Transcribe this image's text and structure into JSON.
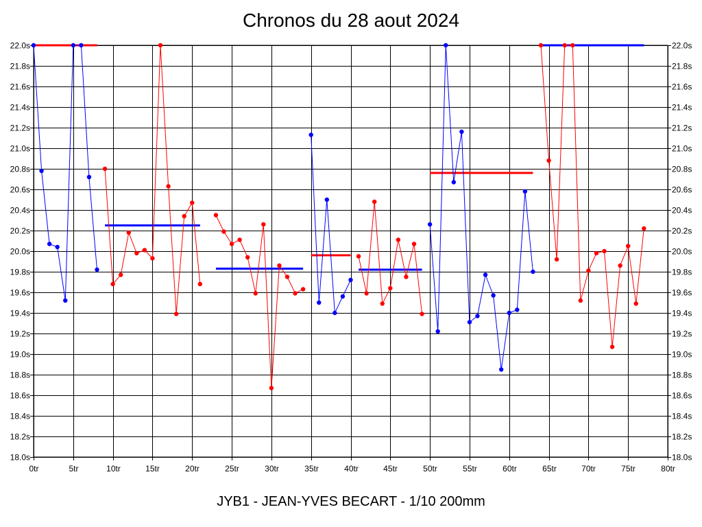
{
  "chart_data": {
    "type": "line",
    "title": "Chronos du 28 aout 2024",
    "subtitle": "JYB1 - JEAN-YVES BECART - 1/10 200mm",
    "xlim": [
      0,
      80
    ],
    "ylim": [
      18.0,
      22.0
    ],
    "grid": true,
    "x_ticks": [
      0,
      5,
      10,
      15,
      20,
      25,
      30,
      35,
      40,
      45,
      50,
      55,
      60,
      65,
      70,
      75,
      80
    ],
    "x_tick_labels": [
      "0tr",
      "5tr",
      "10tr",
      "15tr",
      "20tr",
      "25tr",
      "30tr",
      "35tr",
      "40tr",
      "45tr",
      "50tr",
      "55tr",
      "60tr",
      "65tr",
      "70tr",
      "75tr",
      "80tr"
    ],
    "y_ticks": [
      18.0,
      18.2,
      18.4,
      18.6,
      18.8,
      19.0,
      19.2,
      19.4,
      19.6,
      19.8,
      20.0,
      20.2,
      20.4,
      20.6,
      20.8,
      21.0,
      21.2,
      21.4,
      21.6,
      21.8,
      22.0
    ],
    "y_tick_labels": [
      "18.0s",
      "18.2s",
      "18.4s",
      "18.6s",
      "18.8s",
      "19.0s",
      "19.2s",
      "19.4s",
      "19.6s",
      "19.8s",
      "20.0s",
      "20.2s",
      "20.4s",
      "20.6s",
      "20.8s",
      "21.0s",
      "21.2s",
      "21.4s",
      "21.6s",
      "21.8s",
      "22.0s"
    ],
    "colors": {
      "blue": "#0000ff",
      "red": "#ff0000",
      "grid": "#000000"
    },
    "series": [
      {
        "color": "#0000ff",
        "points": [
          [
            0,
            22.0
          ],
          [
            1,
            20.78
          ],
          [
            2,
            20.07
          ],
          [
            3,
            20.04
          ],
          [
            4,
            19.52
          ],
          [
            5,
            22.0
          ],
          [
            6,
            22.0
          ],
          [
            7,
            20.72
          ],
          [
            8,
            19.82
          ]
        ]
      },
      {
        "color": "#ff0000",
        "points": [
          [
            9,
            20.8
          ],
          [
            10,
            19.68
          ],
          [
            11,
            19.77
          ],
          [
            12,
            20.18
          ],
          [
            13,
            19.98
          ],
          [
            14,
            20.01
          ],
          [
            15,
            19.93
          ],
          [
            16,
            22.0
          ],
          [
            17,
            20.63
          ],
          [
            18,
            19.39
          ],
          [
            19,
            20.34
          ],
          [
            20,
            20.47
          ],
          [
            21,
            19.68
          ]
        ]
      },
      {
        "color": "#ff0000",
        "points": [
          [
            23,
            20.35
          ],
          [
            24,
            20.19
          ],
          [
            25,
            20.07
          ],
          [
            26,
            20.11
          ],
          [
            27,
            19.94
          ],
          [
            28,
            19.59
          ],
          [
            29,
            20.26
          ],
          [
            30,
            18.67
          ],
          [
            31,
            19.86
          ],
          [
            32,
            19.75
          ],
          [
            33,
            19.59
          ],
          [
            34,
            19.63
          ]
        ]
      },
      {
        "color": "#0000ff",
        "points": [
          [
            35,
            21.13
          ],
          [
            36,
            19.5
          ],
          [
            37,
            20.5
          ],
          [
            38,
            19.4
          ],
          [
            39,
            19.56
          ],
          [
            40,
            19.72
          ]
        ]
      },
      {
        "color": "#ff0000",
        "points": [
          [
            41,
            19.95
          ],
          [
            42,
            19.59
          ],
          [
            43,
            20.48
          ],
          [
            44,
            19.49
          ],
          [
            45,
            19.64
          ],
          [
            46,
            20.11
          ],
          [
            47,
            19.75
          ],
          [
            48,
            20.07
          ],
          [
            49,
            19.39
          ]
        ]
      },
      {
        "color": "#0000ff",
        "points": [
          [
            50,
            20.26
          ],
          [
            51,
            19.22
          ],
          [
            52,
            22.0
          ],
          [
            53,
            20.67
          ],
          [
            54,
            21.16
          ],
          [
            55,
            19.31
          ],
          [
            56,
            19.37
          ],
          [
            57,
            19.77
          ],
          [
            58,
            19.57
          ],
          [
            59,
            18.85
          ],
          [
            60,
            19.4
          ],
          [
            61,
            19.43
          ],
          [
            62,
            20.58
          ],
          [
            63,
            19.8
          ]
        ]
      },
      {
        "color": "#ff0000",
        "points": [
          [
            64,
            22.0
          ],
          [
            65,
            20.88
          ],
          [
            66,
            19.92
          ],
          [
            67,
            22.0
          ],
          [
            68,
            22.0
          ],
          [
            69,
            19.52
          ],
          [
            70,
            19.81
          ],
          [
            71,
            19.98
          ],
          [
            72,
            20.0
          ],
          [
            73,
            19.07
          ],
          [
            74,
            19.86
          ],
          [
            75,
            20.05
          ],
          [
            76,
            19.49
          ],
          [
            77,
            20.22
          ]
        ]
      }
    ],
    "averages": [
      {
        "color": "#ff0000",
        "from": 0,
        "to": 8,
        "value": 22.0
      },
      {
        "color": "#0000ff",
        "from": 9,
        "to": 21,
        "value": 20.25
      },
      {
        "color": "#0000ff",
        "from": 23,
        "to": 34,
        "value": 19.83
      },
      {
        "color": "#ff0000",
        "from": 35,
        "to": 40,
        "value": 19.96
      },
      {
        "color": "#0000ff",
        "from": 41,
        "to": 49,
        "value": 19.82
      },
      {
        "color": "#ff0000",
        "from": 50,
        "to": 63,
        "value": 20.76
      },
      {
        "color": "#0000ff",
        "from": 64,
        "to": 77,
        "value": 22.0
      }
    ]
  }
}
